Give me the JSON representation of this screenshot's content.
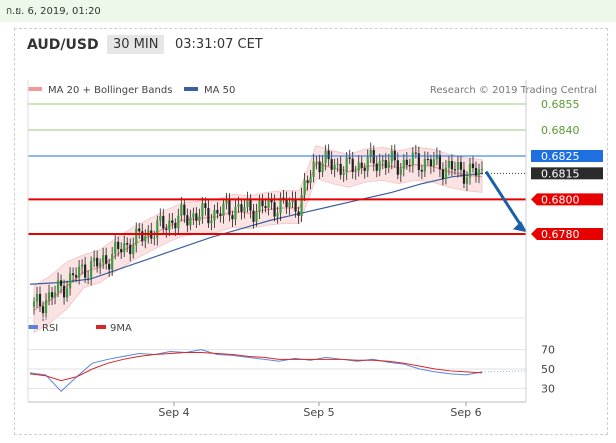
{
  "top_bar": {
    "date_text": "ก.ย. 6, 2019, 01:20"
  },
  "header": {
    "symbol": "AUD/USD",
    "timeframe": "30 MIN",
    "time": "03:31:07 CET"
  },
  "legend": {
    "ma20_label": "MA 20 + Bollinger Bands",
    "ma50_label": "MA 50",
    "ma20_color": "#f19a9a",
    "ma50_color": "#3c5f9e",
    "copyright": "Research © 2019 Trading Central"
  },
  "rsi_legend": {
    "rsi_label": "RSI",
    "ma_label": "9MA",
    "rsi_color": "#5b84d8",
    "ma_color": "#d62728"
  },
  "chart_data": {
    "type": "candlestick",
    "x_tick_labels": [
      "Sep 4",
      "Sep 5",
      "Sep 6"
    ],
    "ylim": [
      0.6735,
      0.687
    ],
    "levels": [
      {
        "value": 0.6855,
        "label": "0.6855",
        "color": "#9bc97b",
        "kind": "target"
      },
      {
        "value": 0.684,
        "label": "0.6840",
        "color": "#9bc97b",
        "kind": "target"
      },
      {
        "value": 0.6825,
        "label": "0.6825",
        "color": "#1e6fe0",
        "kind": "pivot"
      },
      {
        "value": 0.6815,
        "label": "0.6815",
        "color": "#333333",
        "kind": "last_price"
      },
      {
        "value": 0.68,
        "label": "0.6800",
        "color": "#e60000",
        "kind": "support"
      },
      {
        "value": 0.678,
        "label": "0.6780",
        "color": "#e60000",
        "kind": "support"
      }
    ],
    "price_path": [
      0.6738,
      0.6744,
      0.6752,
      0.676,
      0.6763,
      0.677,
      0.6776,
      0.6781,
      0.6786,
      0.679,
      0.6791,
      0.6792,
      0.6795,
      0.6794,
      0.6796,
      0.6797,
      0.6797,
      0.6823,
      0.682,
      0.6818,
      0.6821,
      0.6822,
      0.682,
      0.6822,
      0.6821,
      0.6818,
      0.6816,
      0.6815
    ],
    "ma50_path": [
      0.6751,
      0.6752,
      0.6754,
      0.676,
      0.6766,
      0.6772,
      0.6778,
      0.6783,
      0.6788,
      0.6792,
      0.6796,
      0.68,
      0.6804,
      0.6809,
      0.6813,
      0.6815
    ],
    "rsi_ticks": [
      70,
      50,
      30
    ],
    "rsi_ylim": [
      18,
      82
    ],
    "rsi_values": [
      46,
      44,
      27,
      42,
      56,
      60,
      63,
      66,
      65,
      68,
      67,
      70,
      65,
      64,
      62,
      60,
      58,
      61,
      59,
      62,
      60,
      58,
      60,
      57,
      55,
      50,
      47,
      45,
      44,
      47
    ],
    "rsi_ma_values": [
      45,
      43,
      38,
      42,
      50,
      56,
      60,
      63,
      65,
      66,
      67,
      67,
      66,
      65,
      63,
      62,
      60,
      60,
      60,
      60,
      60,
      59,
      59,
      58,
      56,
      53,
      50,
      48,
      47,
      46
    ]
  }
}
